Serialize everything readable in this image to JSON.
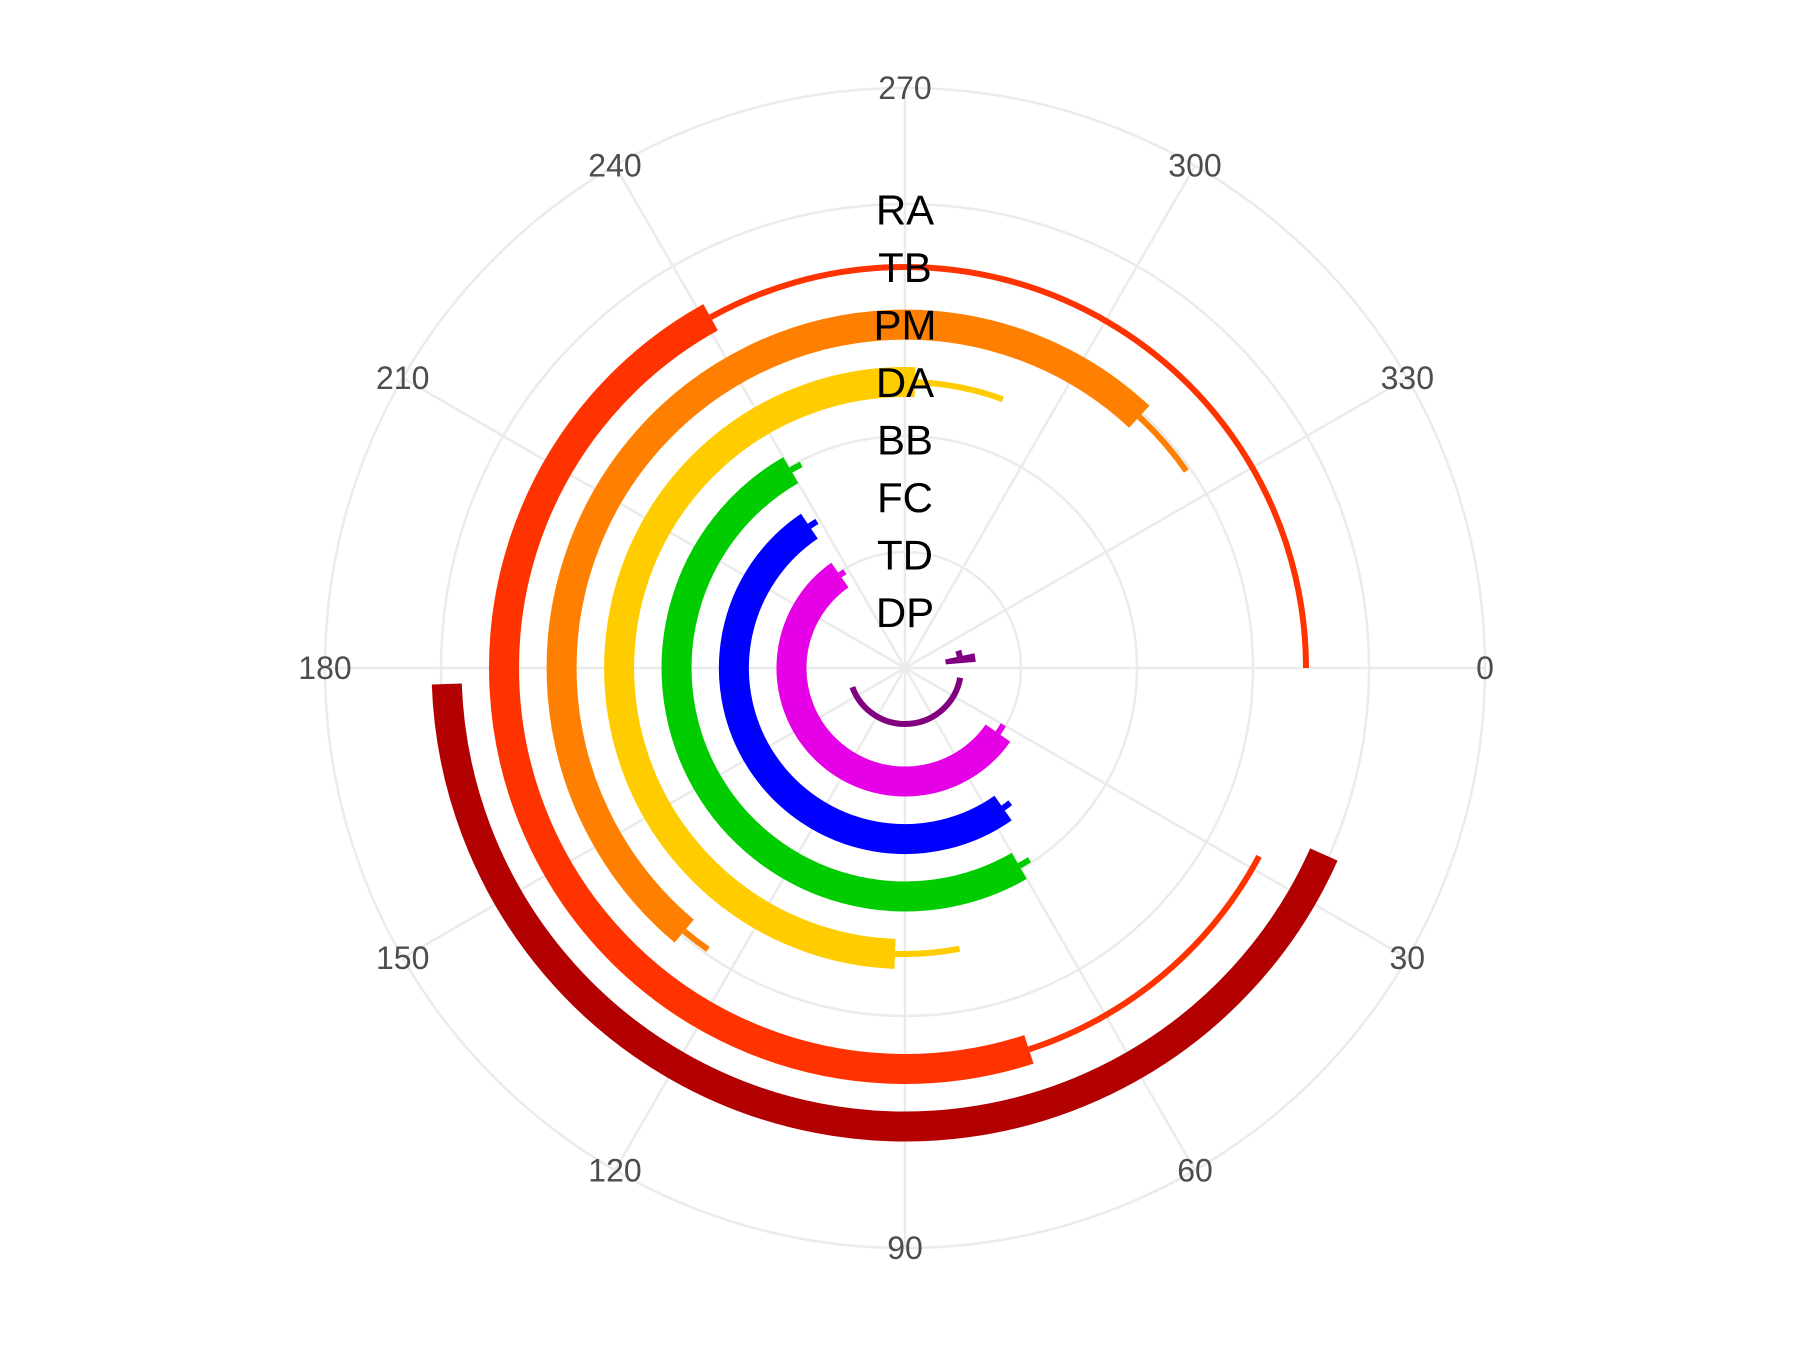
{
  "chart_data": {
    "type": "radial-bar",
    "theta_ticks": [
      "0",
      "30",
      "60",
      "90",
      "120",
      "150",
      "180",
      "210",
      "240",
      "270",
      "300",
      "330"
    ],
    "theta_range": [
      0,
      360
    ],
    "grid": true,
    "categories": [
      "RA",
      "TB",
      "PM",
      "DA",
      "BB",
      "FC",
      "TD",
      "DP"
    ],
    "series": [
      {
        "label": "RA",
        "color": "#b30000",
        "thick": [
          24,
          178
        ],
        "thin": [
          [
            58,
            155
          ]
        ]
      },
      {
        "label": "TB",
        "color": "#ff3300",
        "thick": [
          72,
          241
        ],
        "thin": [
          [
            28,
            72
          ],
          [
            241,
            360
          ]
        ]
      },
      {
        "label": "PM",
        "color": "#ff8000",
        "thick": [
          130,
          313
        ],
        "thin": [
          [
            125,
            130
          ],
          [
            313,
            325
          ]
        ]
      },
      {
        "label": "DA",
        "color": "#ffcc00",
        "thick": [
          92,
          272
        ],
        "thin": [
          [
            79,
            92
          ],
          [
            272,
            290
          ]
        ]
      },
      {
        "label": "BB",
        "color": "#00cc00",
        "thick": [
          60,
          240
        ],
        "thin": [
          [
            57,
            60
          ],
          [
            240,
            243
          ]
        ]
      },
      {
        "label": "FC",
        "color": "#0000ff",
        "thick": [
          55,
          236
        ],
        "thin": [
          [
            52,
            55
          ],
          [
            236,
            239
          ]
        ]
      },
      {
        "label": "TD",
        "color": "#e600e6",
        "thick": [
          35,
          235
        ],
        "thin": [
          [
            30,
            35
          ],
          [
            235,
            238
          ]
        ]
      },
      {
        "label": "DP",
        "color": "#800080",
        "thick": [
          348,
          355
        ],
        "thin": [
          [
            10,
            160
          ],
          [
            342,
            350
          ]
        ]
      }
    ]
  }
}
